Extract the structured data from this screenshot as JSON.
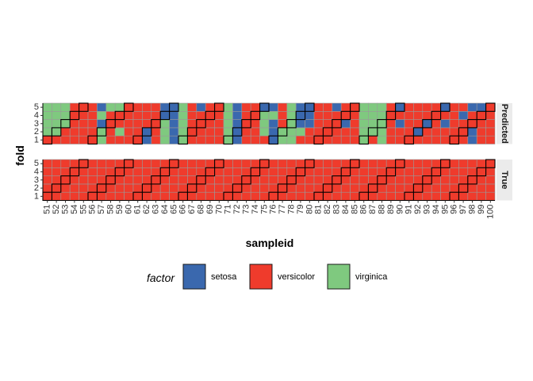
{
  "chart_data": {
    "type": "heatmap",
    "xlabel": "sampleid",
    "ylabel": "fold",
    "x": [
      51,
      52,
      53,
      54,
      55,
      56,
      57,
      58,
      59,
      60,
      61,
      62,
      63,
      64,
      65,
      66,
      67,
      68,
      69,
      70,
      71,
      72,
      73,
      74,
      75,
      76,
      77,
      78,
      79,
      80,
      81,
      82,
      83,
      84,
      85,
      86,
      87,
      88,
      89,
      90,
      91,
      92,
      93,
      94,
      95,
      96,
      97,
      98,
      99,
      100
    ],
    "y": [
      1,
      2,
      3,
      4,
      5
    ],
    "facets": [
      "Predicted",
      "True"
    ],
    "legend": {
      "title": "factor",
      "position": "bottom",
      "items": [
        {
          "label": "setosa",
          "color": "#3A68AE"
        },
        {
          "label": "versicolor",
          "color": "#EF3B2C"
        },
        {
          "label": "virginica",
          "color": "#7FC97F"
        }
      ]
    },
    "highlight_fold": [
      1,
      2,
      3,
      4,
      5,
      1,
      2,
      3,
      4,
      5,
      1,
      2,
      3,
      4,
      5,
      1,
      2,
      3,
      4,
      5,
      1,
      2,
      3,
      4,
      5,
      1,
      2,
      3,
      4,
      5,
      1,
      2,
      3,
      4,
      5,
      1,
      2,
      3,
      4,
      5,
      1,
      2,
      3,
      4,
      5,
      1,
      2,
      3,
      4,
      5
    ],
    "predicted": [
      [
        "versicolor",
        "virginica",
        "virginica",
        "virginica",
        "virginica"
      ],
      [
        "versicolor",
        "virginica",
        "virginica",
        "virginica",
        "virginica"
      ],
      [
        "versicolor",
        "versicolor",
        "virginica",
        "virginica",
        "virginica"
      ],
      [
        "versicolor",
        "versicolor",
        "versicolor",
        "versicolor",
        "versicolor"
      ],
      [
        "versicolor",
        "versicolor",
        "versicolor",
        "versicolor",
        "versicolor"
      ],
      [
        "versicolor",
        "versicolor",
        "versicolor",
        "versicolor",
        "versicolor"
      ],
      [
        "virginica",
        "virginica",
        "setosa",
        "virginica",
        "setosa"
      ],
      [
        "versicolor",
        "versicolor",
        "versicolor",
        "versicolor",
        "virginica"
      ],
      [
        "versicolor",
        "virginica",
        "versicolor",
        "versicolor",
        "virginica"
      ],
      [
        "versicolor",
        "versicolor",
        "versicolor",
        "versicolor",
        "versicolor"
      ],
      [
        "versicolor",
        "versicolor",
        "versicolor",
        "versicolor",
        "versicolor"
      ],
      [
        "setosa",
        "setosa",
        "versicolor",
        "versicolor",
        "versicolor"
      ],
      [
        "versicolor",
        "versicolor",
        "versicolor",
        "versicolor",
        "versicolor"
      ],
      [
        "virginica",
        "virginica",
        "virginica",
        "setosa",
        "setosa"
      ],
      [
        "setosa",
        "setosa",
        "setosa",
        "setosa",
        "setosa"
      ],
      [
        "virginica",
        "virginica",
        "virginica",
        "virginica",
        "virginica"
      ],
      [
        "versicolor",
        "versicolor",
        "versicolor",
        "versicolor",
        "versicolor"
      ],
      [
        "versicolor",
        "versicolor",
        "versicolor",
        "versicolor",
        "setosa"
      ],
      [
        "versicolor",
        "versicolor",
        "versicolor",
        "versicolor",
        "versicolor"
      ],
      [
        "versicolor",
        "versicolor",
        "versicolor",
        "versicolor",
        "versicolor"
      ],
      [
        "virginica",
        "virginica",
        "virginica",
        "virginica",
        "virginica"
      ],
      [
        "setosa",
        "setosa",
        "setosa",
        "setosa",
        "setosa"
      ],
      [
        "versicolor",
        "versicolor",
        "versicolor",
        "versicolor",
        "versicolor"
      ],
      [
        "versicolor",
        "versicolor",
        "versicolor",
        "versicolor",
        "versicolor"
      ],
      [
        "versicolor",
        "virginica",
        "virginica",
        "virginica",
        "setosa"
      ],
      [
        "setosa",
        "setosa",
        "setosa",
        "virginica",
        "setosa"
      ],
      [
        "virginica",
        "virginica",
        "versicolor",
        "versicolor",
        "versicolor"
      ],
      [
        "virginica",
        "virginica",
        "virginica",
        "virginica",
        "virginica"
      ],
      [
        "versicolor",
        "virginica",
        "setosa",
        "setosa",
        "setosa"
      ],
      [
        "versicolor",
        "versicolor",
        "setosa",
        "setosa",
        "setosa"
      ],
      [
        "versicolor",
        "versicolor",
        "versicolor",
        "versicolor",
        "versicolor"
      ],
      [
        "versicolor",
        "versicolor",
        "versicolor",
        "versicolor",
        "versicolor"
      ],
      [
        "versicolor",
        "versicolor",
        "versicolor",
        "versicolor",
        "setosa"
      ],
      [
        "versicolor",
        "versicolor",
        "setosa",
        "versicolor",
        "versicolor"
      ],
      [
        "versicolor",
        "versicolor",
        "versicolor",
        "versicolor",
        "versicolor"
      ],
      [
        "virginica",
        "virginica",
        "virginica",
        "virginica",
        "virginica"
      ],
      [
        "versicolor",
        "virginica",
        "virginica",
        "virginica",
        "virginica"
      ],
      [
        "virginica",
        "virginica",
        "virginica",
        "virginica",
        "virginica"
      ],
      [
        "versicolor",
        "versicolor",
        "versicolor",
        "versicolor",
        "versicolor"
      ],
      [
        "versicolor",
        "versicolor",
        "setosa",
        "versicolor",
        "setosa"
      ],
      [
        "versicolor",
        "versicolor",
        "versicolor",
        "versicolor",
        "versicolor"
      ],
      [
        "versicolor",
        "setosa",
        "versicolor",
        "versicolor",
        "versicolor"
      ],
      [
        "versicolor",
        "versicolor",
        "setosa",
        "versicolor",
        "versicolor"
      ],
      [
        "versicolor",
        "versicolor",
        "versicolor",
        "versicolor",
        "versicolor"
      ],
      [
        "versicolor",
        "versicolor",
        "setosa",
        "versicolor",
        "setosa"
      ],
      [
        "versicolor",
        "versicolor",
        "versicolor",
        "versicolor",
        "versicolor"
      ],
      [
        "versicolor",
        "versicolor",
        "versicolor",
        "setosa",
        "versicolor"
      ],
      [
        "setosa",
        "setosa",
        "versicolor",
        "versicolor",
        "setosa"
      ],
      [
        "versicolor",
        "versicolor",
        "versicolor",
        "versicolor",
        "setosa"
      ],
      [
        "versicolor",
        "versicolor",
        "versicolor",
        "versicolor",
        "versicolor"
      ]
    ],
    "true": [
      [
        "versicolor",
        "versicolor",
        "versicolor",
        "versicolor",
        "versicolor"
      ]
    ]
  }
}
